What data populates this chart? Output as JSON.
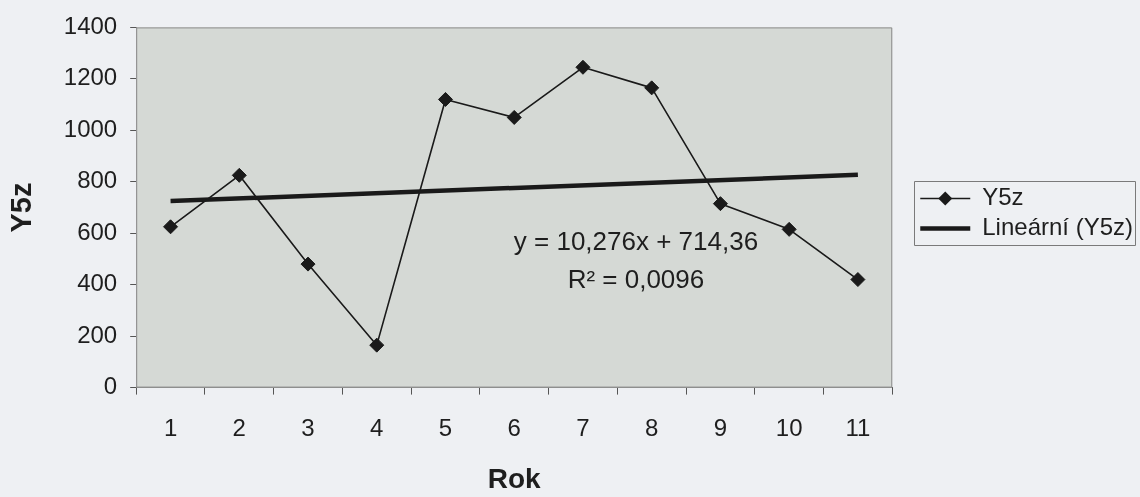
{
  "chart_data": {
    "type": "line",
    "xlabel": "Rok",
    "ylabel": "Y5z",
    "categories": [
      "1",
      "2",
      "3",
      "4",
      "5",
      "6",
      "7",
      "8",
      "9",
      "10",
      "11"
    ],
    "series": [
      {
        "name": "Y5z",
        "color": "#1a1a1a",
        "marker": "diamond",
        "values": [
          625,
          825,
          480,
          165,
          1120,
          1050,
          1245,
          1165,
          715,
          615,
          420
        ]
      },
      {
        "name": "Lineární (Y5z)",
        "color": "#1a1a1a",
        "marker": "none",
        "x": [
          "1",
          "11"
        ],
        "values": [
          725,
          827
        ]
      }
    ],
    "ylim": [
      0,
      1400
    ],
    "yticks": [
      0,
      200,
      400,
      600,
      800,
      1000,
      1200,
      1400
    ],
    "grid": false,
    "legend": "right",
    "annotations": [
      "y = 10,276x + 714,36",
      "R² = 0,0096"
    ]
  }
}
